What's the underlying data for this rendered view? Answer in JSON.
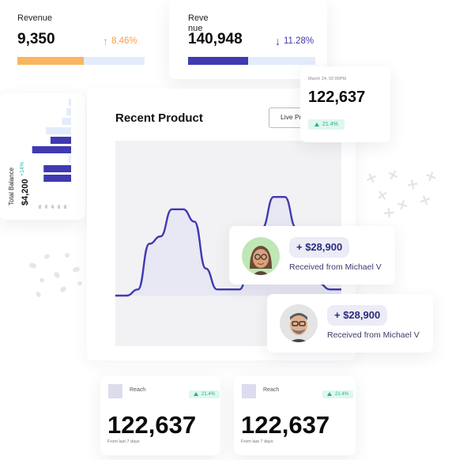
{
  "colors": {
    "accent": "#3f3ab0",
    "orange": "#f9b55f",
    "green": "#24b47e",
    "light_blue": "#e3ecfb",
    "chart_fill": "#f2f2f4"
  },
  "revenue1": {
    "label": "Revenue",
    "value": "9,350",
    "change": "8.46%",
    "direction": "up",
    "progress": 0.52
  },
  "revenue2": {
    "label": "Reve nue",
    "value": "140,948",
    "change": "11.28%",
    "direction": "down",
    "progress": 0.47
  },
  "stat_card": {
    "date": "March 24, 02:00PM",
    "value": "122,637",
    "badge": "21.4%"
  },
  "balance": {
    "title": "Total Balance",
    "amount": "$4,200",
    "change": "+14%",
    "ticks": [
      "0k",
      "2k",
      "4k",
      "6k",
      "8k"
    ],
    "bars": [
      {
        "value": 0.6,
        "color": "#3f3ab0"
      },
      {
        "value": 0.6,
        "color": "#3f3ab0"
      },
      {
        "value": 0.0,
        "color": "#e3ecfb"
      },
      {
        "value": 0.85,
        "color": "#3f3ab0"
      },
      {
        "value": 0.45,
        "color": "#3f3ab0"
      },
      {
        "value": 0.55,
        "color": "#e3ecfb"
      },
      {
        "value": 0.2,
        "color": "#e3ecfb"
      },
      {
        "value": 0.1,
        "color": "#e3ecfb"
      },
      {
        "value": 0.0,
        "color": "#e3ecfb"
      }
    ]
  },
  "recent": {
    "title": "Recent Product",
    "button": "Live Pre"
  },
  "chart_data": {
    "type": "line",
    "x": [
      0,
      1,
      2,
      3,
      4,
      5,
      6,
      7,
      8,
      9,
      10,
      11,
      12,
      13,
      14,
      15,
      16,
      17,
      18,
      19,
      20
    ],
    "values": [
      0,
      0,
      0.05,
      0.42,
      0.48,
      0.7,
      0.7,
      0.6,
      0.22,
      0.05,
      0.05,
      0.05,
      0.3,
      0.55,
      0.8,
      0.8,
      0.55,
      0.3,
      0.1,
      0.05,
      0.05
    ]
  },
  "transfers": [
    {
      "amount": "+ $28,900",
      "label": "Received from Michael V"
    },
    {
      "amount": "+ $28,900",
      "label": "Received from Michael V"
    }
  ],
  "reach_cards": [
    {
      "label": "Reach",
      "badge": "21.4%",
      "value": "122,637",
      "sub": "From last 7 days"
    },
    {
      "label": "Reach",
      "badge": "21.4%",
      "value": "122,637",
      "sub": "From last 7 days"
    }
  ]
}
